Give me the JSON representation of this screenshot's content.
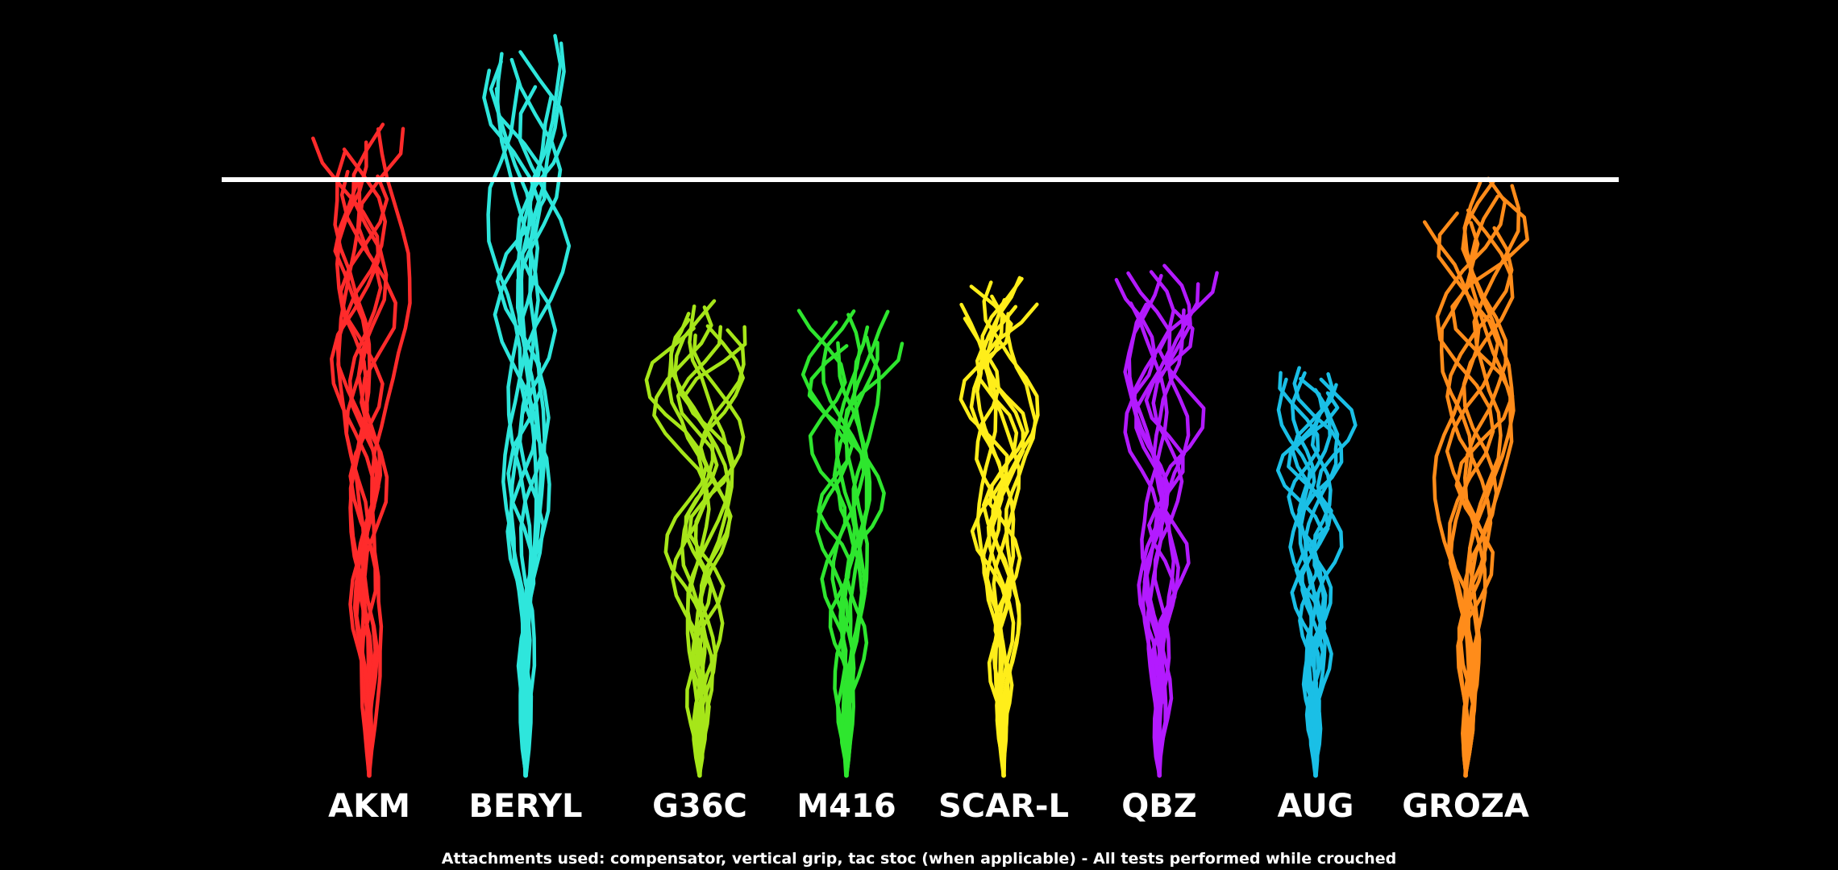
{
  "chart_data": {
    "type": "line",
    "title": "",
    "xlabel": "",
    "ylabel": "",
    "reference_line": true,
    "grid": false,
    "series": [
      {
        "name": "AKM",
        "color": "#ff2b2b",
        "recoil": 1.08,
        "horizontal_spread": 0.5
      },
      {
        "name": "BERYL",
        "color": "#2ee6dc",
        "recoil": 1.22,
        "horizontal_spread": 0.48
      },
      {
        "name": "G36C",
        "color": "#a6e619",
        "recoil": 0.8,
        "horizontal_spread": 0.55
      },
      {
        "name": "M416",
        "color": "#2ee62e",
        "recoil": 0.78,
        "horizontal_spread": 0.45
      },
      {
        "name": "SCAR-L",
        "color": "#ffee1a",
        "recoil": 0.82,
        "horizontal_spread": 0.48
      },
      {
        "name": "QBZ",
        "color": "#b31aff",
        "recoil": 0.84,
        "horizontal_spread": 0.5
      },
      {
        "name": "AUG",
        "color": "#1abfe6",
        "recoil": 0.68,
        "horizontal_spread": 0.42
      },
      {
        "name": "GROZA",
        "color": "#ff8c1a",
        "recoil": 0.99,
        "horizontal_spread": 0.64
      }
    ],
    "footnote": "Attachments used: compensator, vertical grip, tac stoc (when applicable) - All tests performed while crouched"
  }
}
